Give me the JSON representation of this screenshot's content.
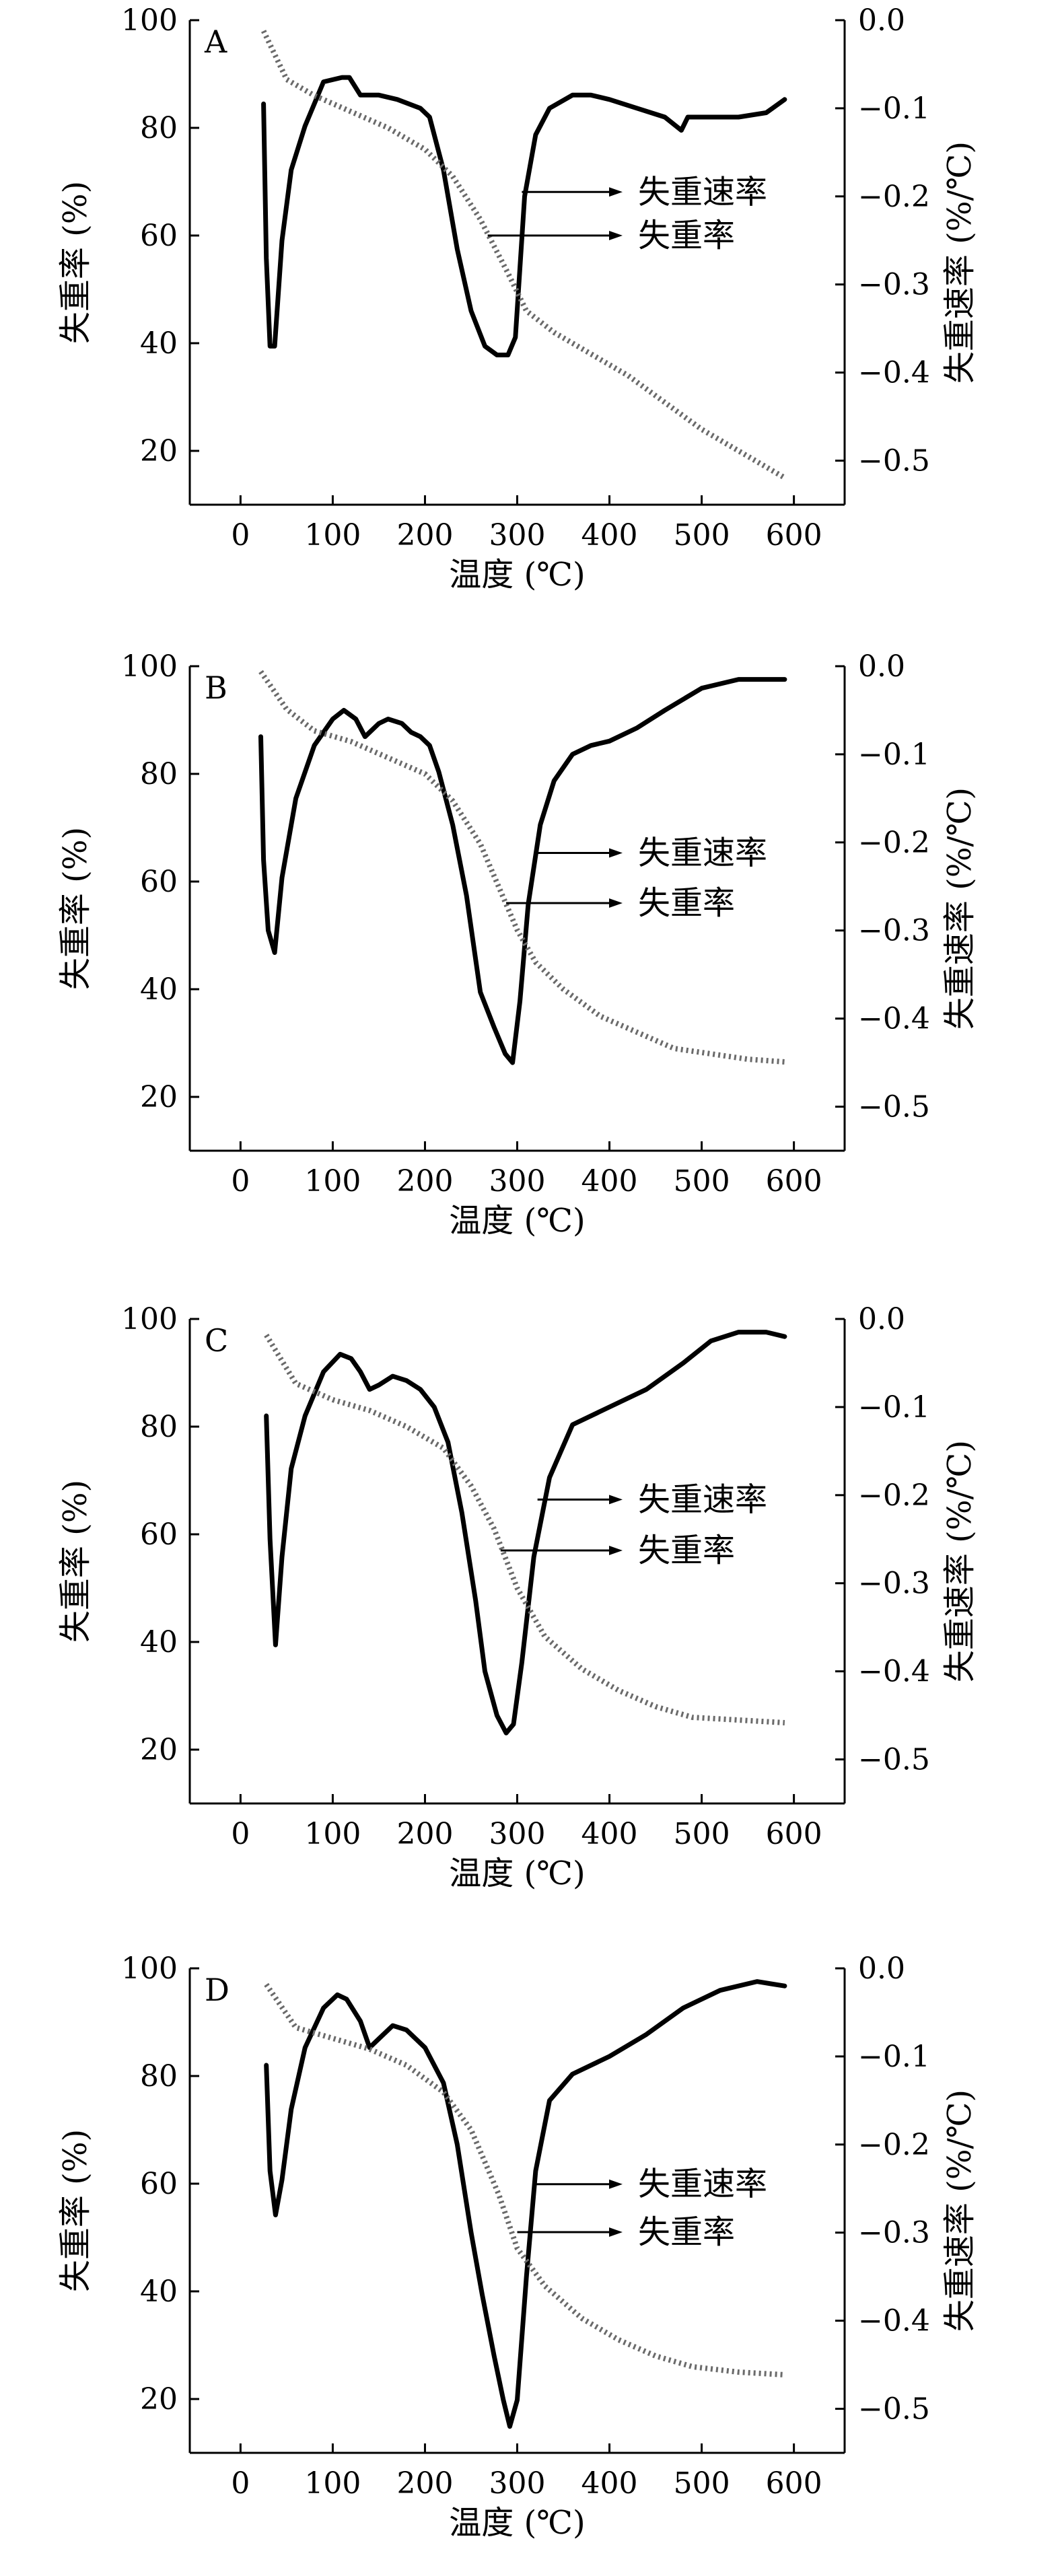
{
  "chart_data": [
    {
      "type": "line",
      "panel_label": "A",
      "xlabel": "温度 (℃)",
      "ylabel_left": "失重率 (%)",
      "ylabel_right": "失重速率 (%/℃)",
      "xlim": [
        -55,
        655
      ],
      "x_ticks": [
        0,
        100,
        200,
        300,
        400,
        500,
        600
      ],
      "ylim_left": [
        10,
        100
      ],
      "y_ticks_left": [
        20,
        40,
        60,
        80,
        100
      ],
      "ylim_right": [
        -0.55,
        0.0
      ],
      "y_ticks_right": [
        0.0,
        -0.1,
        -0.2,
        -0.3,
        -0.4,
        -0.5
      ],
      "series": [
        {
          "name": "失重速率",
          "axis": "right",
          "x": [
            25,
            28,
            32,
            37,
            45,
            55,
            70,
            90,
            110,
            118,
            130,
            150,
            170,
            195,
            205,
            220,
            235,
            250,
            265,
            278,
            290,
            298,
            308,
            320,
            335,
            360,
            380,
            400,
            430,
            460,
            478,
            485,
            500,
            540,
            570,
            590
          ],
          "y": [
            -0.095,
            -0.27,
            -0.37,
            -0.37,
            -0.25,
            -0.17,
            -0.12,
            -0.07,
            -0.065,
            -0.065,
            -0.085,
            -0.085,
            -0.09,
            -0.1,
            -0.11,
            -0.17,
            -0.26,
            -0.33,
            -0.37,
            -0.38,
            -0.38,
            -0.36,
            -0.2,
            -0.13,
            -0.1,
            -0.085,
            -0.085,
            -0.09,
            -0.1,
            -0.11,
            -0.125,
            -0.11,
            -0.11,
            -0.11,
            -0.105,
            -0.09
          ]
        },
        {
          "name": "失重率",
          "axis": "left",
          "x": [
            25,
            50,
            80,
            120,
            160,
            200,
            230,
            260,
            290,
            310,
            340,
            380,
            420,
            460,
            500,
            540,
            590
          ],
          "y": [
            98,
            89,
            86,
            83,
            80,
            76,
            71,
            63,
            53,
            46,
            42,
            38,
            34,
            29,
            24,
            20,
            15
          ]
        }
      ],
      "annotations": [
        {
          "text": "失重速率",
          "x": 305,
          "axis": "right",
          "y": -0.195
        },
        {
          "text": "失重率",
          "x": 268,
          "axis": "left",
          "y": 60
        }
      ]
    },
    {
      "type": "line",
      "panel_label": "B",
      "xlabel": "温度 (℃)",
      "ylabel_left": "失重率 (%)",
      "ylabel_right": "失重速率 (%/℃)",
      "xlim": [
        -55,
        655
      ],
      "x_ticks": [
        0,
        100,
        200,
        300,
        400,
        500,
        600
      ],
      "ylim_left": [
        10,
        100
      ],
      "y_ticks_left": [
        20,
        40,
        60,
        80,
        100
      ],
      "ylim_right": [
        -0.55,
        0.0
      ],
      "y_ticks_right": [
        0.0,
        -0.1,
        -0.2,
        -0.3,
        -0.4,
        -0.5
      ],
      "series": [
        {
          "name": "失重速率",
          "axis": "right",
          "x": [
            22,
            25,
            30,
            37,
            45,
            60,
            80,
            100,
            112,
            125,
            135,
            140,
            150,
            160,
            175,
            185,
            195,
            205,
            215,
            230,
            245,
            260,
            275,
            287,
            295,
            303,
            312,
            325,
            340,
            360,
            380,
            400,
            430,
            460,
            500,
            540,
            570,
            590
          ],
          "y": [
            -0.08,
            -0.22,
            -0.3,
            -0.325,
            -0.24,
            -0.15,
            -0.09,
            -0.06,
            -0.05,
            -0.06,
            -0.08,
            -0.075,
            -0.065,
            -0.06,
            -0.065,
            -0.075,
            -0.08,
            -0.09,
            -0.12,
            -0.18,
            -0.26,
            -0.37,
            -0.41,
            -0.44,
            -0.45,
            -0.38,
            -0.27,
            -0.18,
            -0.13,
            -0.1,
            -0.09,
            -0.085,
            -0.07,
            -0.05,
            -0.025,
            -0.015,
            -0.015,
            -0.015
          ]
        },
        {
          "name": "失重率",
          "axis": "left",
          "x": [
            22,
            50,
            80,
            120,
            160,
            200,
            230,
            260,
            280,
            300,
            320,
            350,
            390,
            430,
            470,
            510,
            550,
            590
          ],
          "y": [
            99,
            92,
            88,
            86,
            83,
            80,
            75,
            67,
            59,
            51,
            45,
            40,
            35,
            32,
            29,
            28,
            27,
            26.5
          ]
        }
      ],
      "annotations": [
        {
          "text": "失重速率",
          "x": 318,
          "axis": "right",
          "y": -0.212
        },
        {
          "text": "失重率",
          "x": 288,
          "axis": "left",
          "y": 56
        }
      ]
    },
    {
      "type": "line",
      "panel_label": "C",
      "xlabel": "温度 (℃)",
      "ylabel_left": "失重率 (%)",
      "ylabel_right": "失重速率 (%/℃)",
      "xlim": [
        -55,
        655
      ],
      "x_ticks": [
        0,
        100,
        200,
        300,
        400,
        500,
        600
      ],
      "ylim_left": [
        10,
        100
      ],
      "y_ticks_left": [
        20,
        40,
        60,
        80,
        100
      ],
      "ylim_right": [
        -0.55,
        0.0
      ],
      "y_ticks_right": [
        0.0,
        -0.1,
        -0.2,
        -0.3,
        -0.4,
        -0.5
      ],
      "series": [
        {
          "name": "失重速率",
          "axis": "right",
          "x": [
            28,
            32,
            38,
            45,
            55,
            70,
            90,
            108,
            120,
            130,
            140,
            150,
            165,
            180,
            195,
            210,
            225,
            240,
            255,
            265,
            278,
            288,
            296,
            305,
            318,
            335,
            360,
            400,
            440,
            480,
            510,
            540,
            570,
            590
          ],
          "y": [
            -0.11,
            -0.25,
            -0.37,
            -0.27,
            -0.17,
            -0.11,
            -0.06,
            -0.04,
            -0.045,
            -0.06,
            -0.08,
            -0.075,
            -0.065,
            -0.07,
            -0.08,
            -0.1,
            -0.14,
            -0.22,
            -0.32,
            -0.4,
            -0.45,
            -0.47,
            -0.46,
            -0.39,
            -0.27,
            -0.18,
            -0.12,
            -0.1,
            -0.08,
            -0.05,
            -0.025,
            -0.015,
            -0.015,
            -0.02
          ]
        },
        {
          "name": "失重率",
          "axis": "left",
          "x": [
            28,
            60,
            100,
            140,
            180,
            220,
            250,
            275,
            300,
            330,
            370,
            410,
            450,
            490,
            540,
            590
          ],
          "y": [
            97,
            88,
            85,
            83,
            80,
            76,
            69,
            61,
            50,
            41,
            35,
            31,
            28,
            26,
            25.5,
            25
          ]
        }
      ],
      "annotations": [
        {
          "text": "失重速率",
          "x": 322,
          "axis": "right",
          "y": -0.205
        },
        {
          "text": "失重率",
          "x": 282,
          "axis": "left",
          "y": 57
        }
      ]
    },
    {
      "type": "line",
      "panel_label": "D",
      "xlabel": "温度 (℃)",
      "ylabel_left": "失重率 (%)",
      "ylabel_right": "失重速率 (%/℃)",
      "xlim": [
        -55,
        655
      ],
      "x_ticks": [
        0,
        100,
        200,
        300,
        400,
        500,
        600
      ],
      "ylim_left": [
        10,
        100
      ],
      "y_ticks_left": [
        20,
        40,
        60,
        80,
        100
      ],
      "ylim_right": [
        -0.55,
        0.0
      ],
      "y_ticks_right": [
        0.0,
        -0.1,
        -0.2,
        -0.3,
        -0.4,
        -0.5
      ],
      "series": [
        {
          "name": "失重速率",
          "axis": "right",
          "x": [
            28,
            32,
            38,
            45,
            55,
            70,
            90,
            105,
            115,
            130,
            140,
            150,
            165,
            180,
            200,
            220,
            235,
            250,
            262,
            275,
            285,
            292,
            300,
            310,
            320,
            335,
            360,
            400,
            440,
            480,
            520,
            560,
            590
          ],
          "y": [
            -0.11,
            -0.23,
            -0.28,
            -0.24,
            -0.16,
            -0.09,
            -0.045,
            -0.03,
            -0.035,
            -0.06,
            -0.09,
            -0.08,
            -0.065,
            -0.07,
            -0.09,
            -0.13,
            -0.2,
            -0.3,
            -0.37,
            -0.44,
            -0.49,
            -0.52,
            -0.49,
            -0.35,
            -0.23,
            -0.15,
            -0.12,
            -0.1,
            -0.075,
            -0.045,
            -0.025,
            -0.015,
            -0.02
          ]
        },
        {
          "name": "失重率",
          "axis": "left",
          "x": [
            28,
            60,
            100,
            140,
            180,
            220,
            250,
            280,
            300,
            330,
            370,
            410,
            450,
            490,
            540,
            590
          ],
          "y": [
            97,
            89,
            87,
            85,
            82,
            77,
            70,
            58,
            48,
            41,
            35,
            31,
            28,
            26,
            25,
            24.5
          ]
        }
      ],
      "annotations": [
        {
          "text": "失重速率",
          "x": 318,
          "axis": "right",
          "y": -0.245
        },
        {
          "text": "失重率",
          "x": 300,
          "axis": "left",
          "y": 51
        }
      ]
    }
  ]
}
